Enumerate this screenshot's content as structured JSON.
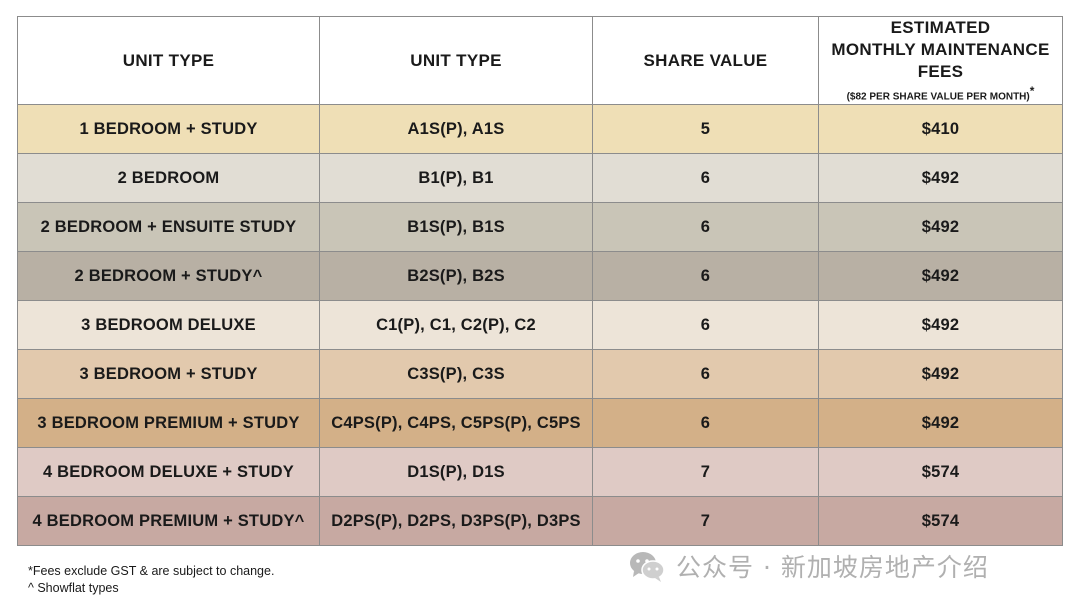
{
  "table": {
    "headers": [
      "UNIT TYPE",
      "UNIT TYPE",
      "SHARE VALUE"
    ],
    "fee_header": {
      "line1": "ESTIMATED",
      "line2": "MONTHLY MAINTENANCE",
      "line3": "FEES",
      "note": "($82 PER SHARE VALUE PER MONTH)",
      "mark": "*"
    },
    "rows": [
      {
        "name": "1 BEDROOM + STUDY",
        "code": "A1S(P), A1S",
        "share": "5",
        "fee": "$410",
        "color": "#efdfb6"
      },
      {
        "name": "2 BEDROOM",
        "code": "B1(P), B1",
        "share": "6",
        "fee": "$492",
        "color": "#e1ddd4"
      },
      {
        "name": "2 BEDROOM + ENSUITE STUDY",
        "code": "B1S(P), B1S",
        "share": "6",
        "fee": "$492",
        "color": "#c9c5b7"
      },
      {
        "name": "2 BEDROOM + STUDY^",
        "code": "B2S(P), B2S",
        "share": "6",
        "fee": "$492",
        "color": "#b8b0a4"
      },
      {
        "name": "3 BEDROOM DELUXE",
        "code": "C1(P), C1, C2(P), C2",
        "share": "6",
        "fee": "$492",
        "color": "#ede4d8"
      },
      {
        "name": "3 BEDROOM + STUDY",
        "code": "C3S(P), C3S",
        "share": "6",
        "fee": "$492",
        "color": "#e2c9ad"
      },
      {
        "name": "3 BEDROOM PREMIUM +  STUDY",
        "code": "C4PS(P), C4PS, C5PS(P), C5PS",
        "share": "6",
        "fee": "$492",
        "color": "#d3b088"
      },
      {
        "name": "4 BEDROOM DELUXE + STUDY",
        "code": "D1S(P), D1S",
        "share": "7",
        "fee": "$574",
        "color": "#dfcac5"
      },
      {
        "name": "4 BEDROOM PREMIUM + STUDY^",
        "code": "D2PS(P), D2PS, D3PS(P), D3PS",
        "share": "7",
        "fee": "$574",
        "color": "#c7a9a2"
      }
    ]
  },
  "footnotes": [
    "*Fees exclude GST & are subject to change.",
    "^ Showflat types"
  ],
  "watermark": {
    "text": "公众号 · 新加坡房地产介绍",
    "icon": "wechat-icon"
  }
}
